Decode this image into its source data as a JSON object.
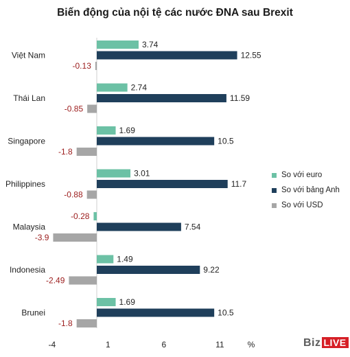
{
  "chart_data": {
    "type": "bar",
    "orientation": "horizontal",
    "title": "Biến động của nội tệ các nước ĐNA sau Brexit",
    "categories": [
      "Việt Nam",
      "Thái Lan",
      "Singapore",
      "Philippines",
      "Malaysia",
      "Indonesia",
      "Brunei"
    ],
    "series": [
      {
        "name": "So với euro",
        "color": "#6cc1a5",
        "values": [
          3.74,
          2.74,
          1.69,
          3.01,
          -0.28,
          1.49,
          1.69
        ]
      },
      {
        "name": "So với bảng Anh",
        "color": "#1f3f5b",
        "values": [
          12.55,
          11.59,
          10.5,
          11.7,
          7.54,
          9.22,
          10.5
        ]
      },
      {
        "name": "So với USD",
        "color": "#a6a6a6",
        "values": [
          -0.13,
          -0.85,
          -1.8,
          -0.88,
          -3.9,
          -2.49,
          -1.8
        ]
      }
    ],
    "value_labels": [
      [
        "3.74",
        "12.55",
        "-0.13"
      ],
      [
        "2.74",
        "11.59",
        "-0.85"
      ],
      [
        "1.69",
        "10.5",
        "-1.8"
      ],
      [
        "3.01",
        "11.7",
        "-0.88"
      ],
      [
        "-0.28",
        "7.54",
        "-3.9"
      ],
      [
        "1.49",
        "9.22",
        "-2.49"
      ],
      [
        "1.69",
        "10.5",
        "-1.8"
      ]
    ],
    "negative_label_color": "#9b1b1b",
    "xlim": [
      -4,
      14
    ],
    "xticks": [
      "-4",
      "1",
      "6",
      "11"
    ],
    "x_unit": "%",
    "legend_position": "right",
    "grid": false
  },
  "branding": {
    "biz": "Biz",
    "live": "LIVE"
  }
}
